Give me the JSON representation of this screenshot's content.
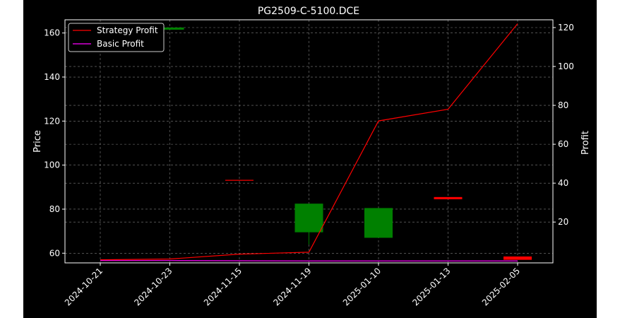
{
  "chart_data": {
    "type": "candlestick_with_lines",
    "title": "PG2509-C-5100.DCE",
    "ylabel_left": "Price",
    "ylabel_right": "Profit",
    "ylim_left": [
      55.6,
      166
    ],
    "yticks_left": [
      60,
      80,
      100,
      120,
      140,
      160
    ],
    "ylim_right": [
      -1,
      124
    ],
    "yticks_right": [
      20,
      40,
      60,
      80,
      100,
      120
    ],
    "grid": true,
    "legend_position": "top-left",
    "categories": [
      "2024-10-21",
      "2024-10-23",
      "2024-11-15",
      "2024-11-19",
      "2025-01-10",
      "2025-01-13",
      "2025-02-05"
    ],
    "candles": [
      {
        "date": "2024-10-21",
        "open": 162,
        "close": 162,
        "high": 162,
        "low": 162,
        "color": "#008000",
        "visible": false
      },
      {
        "date": "2024-10-23",
        "open": 161.5,
        "close": 162.5,
        "high": 162.5,
        "low": 161.5,
        "color": "#008000"
      },
      {
        "date": "2024-11-15",
        "open": 93.3,
        "close": 93.1,
        "high": 93.3,
        "low": 93.1,
        "color": "#ff0000"
      },
      {
        "date": "2024-11-19",
        "open": 69.5,
        "close": 82.5,
        "high": 82.5,
        "low": 64,
        "color": "#008000"
      },
      {
        "date": "2025-01-10",
        "open": 67,
        "close": 80.5,
        "high": 80.5,
        "low": 67,
        "color": "#008000"
      },
      {
        "date": "2025-01-13",
        "open": 85.5,
        "close": 84.5,
        "high": 85.5,
        "low": 84.5,
        "color": "#ff0000"
      },
      {
        "date": "2025-02-05",
        "open": 58.5,
        "close": 57,
        "high": 58.5,
        "low": 57,
        "color": "#ff0000"
      }
    ],
    "series": [
      {
        "name": "Strategy Profit",
        "color": "#ff0000",
        "values": [
          0.6,
          1,
          3.5,
          4.5,
          72,
          78,
          122
        ]
      },
      {
        "name": "Basic Profit",
        "color": "#ff00ff",
        "values": [
          0.2,
          0.2,
          0.1,
          0,
          0,
          0,
          0
        ]
      }
    ]
  }
}
